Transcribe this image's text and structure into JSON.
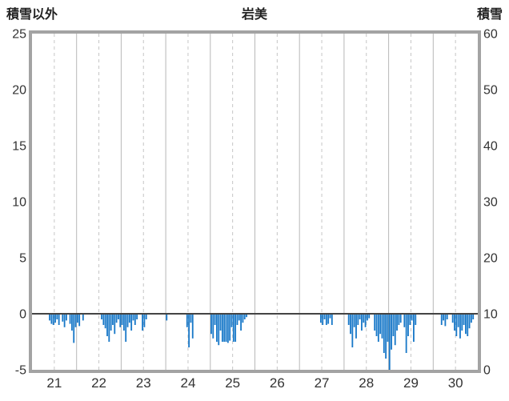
{
  "header": {
    "left_axis_title": "積雪以外",
    "station_title": "岩美",
    "right_axis_title": "積雪"
  },
  "chart_data": {
    "type": "bar",
    "title": "岩美",
    "left_axis": {
      "label": "積雪以外",
      "min": -5,
      "max": 25,
      "ticks": [
        25,
        20,
        15,
        10,
        5,
        0,
        -5
      ]
    },
    "right_axis": {
      "label": "積雪",
      "min": 0,
      "max": 60,
      "ticks": [
        60,
        50,
        40,
        30,
        20,
        10,
        0
      ]
    },
    "x_days": [
      21,
      22,
      23,
      24,
      25,
      26,
      27,
      28,
      29,
      30
    ],
    "hours_per_day": 24,
    "bar_color": "#1878c8",
    "zero_line_color": "#444444",
    "frame_color": "#a3a3a3",
    "grid": {
      "vertical_solid": "day-boundaries",
      "vertical_dashed": "day-centers",
      "horizontal": "zero-line-only",
      "solid_color": "#b8b8b8",
      "dashed_color": "#c6c6c6"
    },
    "values_by_day": [
      [
        0,
        0,
        0,
        0,
        0,
        0,
        0,
        0,
        0,
        -0.6,
        -0.9,
        -1.0,
        -0.8,
        -0.5,
        -1.0,
        0,
        -0.7,
        -1.2,
        -0.6,
        0,
        -0.9,
        -1.5,
        -2.6,
        -1.2
      ],
      [
        -0.8,
        -1.1,
        0,
        -0.6,
        0,
        0,
        0,
        0,
        0,
        0,
        0,
        0,
        0,
        -0.5,
        -1.0,
        -1.3,
        -2.0,
        -2.5,
        -1.5,
        -1.0,
        -1.8,
        -0.8,
        -0.5,
        -1.2
      ],
      [
        -1.0,
        -1.5,
        -2.5,
        -1.2,
        -0.8,
        -1.5,
        -0.6,
        -1.0,
        -0.5,
        0,
        0,
        -1.5,
        -1.2,
        -0.5,
        0,
        0,
        0,
        0,
        0,
        0,
        0,
        0,
        0,
        0
      ],
      [
        -0.6,
        0,
        0,
        0,
        0,
        0,
        0,
        0,
        0,
        0,
        0,
        -1.2,
        -3.0,
        -0.8,
        -2.2,
        0,
        0,
        0,
        0,
        0,
        0,
        0,
        0,
        0
      ],
      [
        -1.8,
        -2.2,
        -1.0,
        -2.5,
        -2.8,
        -1.5,
        -2.5,
        -2.5,
        -2.5,
        -2.6,
        -2.4,
        -1.2,
        -2.5,
        -2.5,
        -1.0,
        -0.6,
        -1.5,
        -0.8,
        -0.5,
        -0.3,
        0,
        0,
        0,
        0
      ],
      [
        0,
        0,
        0,
        0,
        0,
        0,
        0,
        0,
        0,
        0,
        0,
        0,
        0,
        0,
        0,
        0,
        0,
        0,
        0,
        0,
        0,
        0,
        0,
        0
      ],
      [
        0,
        0,
        0,
        0,
        0,
        0,
        0,
        0,
        0,
        0,
        0,
        -0.8,
        -1.0,
        -0.5,
        -1.0,
        -0.9,
        -0.4,
        -1.0,
        0,
        0,
        0,
        0,
        0,
        0
      ],
      [
        0,
        0,
        -1.0,
        -1.8,
        -3.0,
        -1.2,
        -2.2,
        -1.0,
        -0.5,
        -1.5,
        -0.8,
        -1.2,
        -0.6,
        -0.4,
        0,
        0,
        -1.5,
        -2.0,
        -2.5,
        -1.8,
        -2.2,
        -3.5,
        -4.0,
        -2.5
      ],
      [
        -5.0,
        -3.2,
        -2.0,
        -2.8,
        -1.5,
        -1.0,
        -0.8,
        0,
        -1.2,
        -3.5,
        -2.0,
        -1.0,
        -0.6,
        -2.5,
        -1.0,
        0,
        0,
        0,
        0,
        0,
        0,
        0,
        0,
        0
      ],
      [
        0,
        0,
        0,
        0,
        -1.0,
        -0.6,
        -1.1,
        -0.5,
        0,
        0,
        -0.8,
        -1.5,
        -2.0,
        -1.2,
        -2.2,
        -1.5,
        -1.0,
        -1.8,
        -2.0,
        -1.3,
        -0.8,
        -0.5,
        0,
        0
      ]
    ]
  }
}
